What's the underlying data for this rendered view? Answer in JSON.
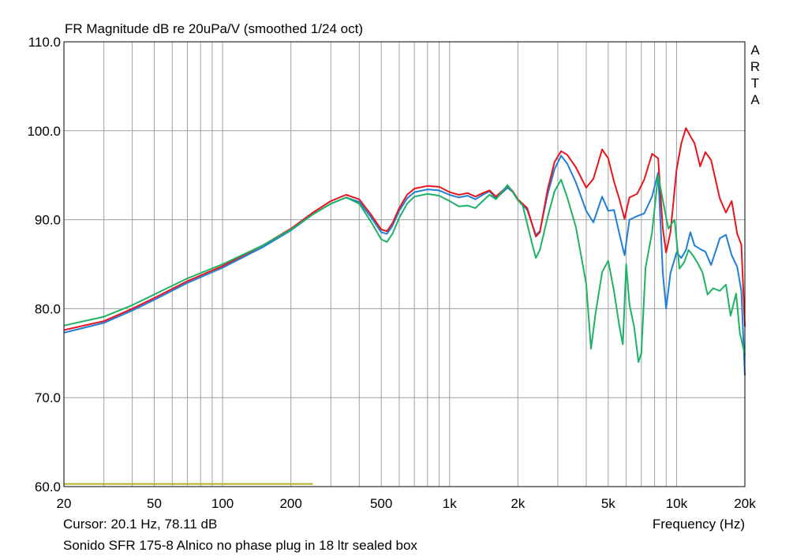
{
  "header": {
    "title": "FR Magnitude dB re 20uPa/V (smoothed 1/24 oct)",
    "brand_letters": [
      "A",
      "R",
      "T",
      "A"
    ]
  },
  "footer": {
    "cursor_readout": "Cursor: 20.1 Hz, 78.11 dB",
    "caption": "Sonido SFR 175-8 Alnico no phase plug in 18 ltr sealed box"
  },
  "chart_data": {
    "type": "line",
    "title": "FR Magnitude dB re 20uPa/V (smoothed 1/24 oct)",
    "xlabel": "Frequency (Hz)",
    "ylabel": "",
    "x_scale": "log",
    "xlim": [
      20,
      20000
    ],
    "ylim": [
      60,
      110
    ],
    "grid": true,
    "x_ticks": [
      {
        "value": 20,
        "label": "20"
      },
      {
        "value": 50,
        "label": "50"
      },
      {
        "value": 100,
        "label": "100"
      },
      {
        "value": 200,
        "label": "200"
      },
      {
        "value": 500,
        "label": "500"
      },
      {
        "value": 1000,
        "label": "1k"
      },
      {
        "value": 2000,
        "label": "2k"
      },
      {
        "value": 5000,
        "label": "5k"
      },
      {
        "value": 10000,
        "label": "10k"
      },
      {
        "value": 20000,
        "label": "20k"
      }
    ],
    "y_ticks": [
      {
        "value": 60,
        "label": "60.0"
      },
      {
        "value": 70,
        "label": "70.0"
      },
      {
        "value": 80,
        "label": "80.0"
      },
      {
        "value": 90,
        "label": "90.0"
      },
      {
        "value": 100,
        "label": "100.0"
      },
      {
        "value": 110,
        "label": "110.0"
      }
    ],
    "colors": {
      "grid": "#a0a0a0",
      "frame": "#000000"
    },
    "series": [
      {
        "color": "#1f7fd8",
        "points": [
          [
            20,
            77.3
          ],
          [
            30,
            78.4
          ],
          [
            40,
            79.8
          ],
          [
            50,
            81.0
          ],
          [
            70,
            82.9
          ],
          [
            100,
            84.6
          ],
          [
            150,
            86.9
          ],
          [
            200,
            88.8
          ],
          [
            250,
            90.6
          ],
          [
            300,
            91.8
          ],
          [
            350,
            92.5
          ],
          [
            400,
            92.0
          ],
          [
            450,
            90.3
          ],
          [
            500,
            88.6
          ],
          [
            530,
            88.4
          ],
          [
            560,
            89.3
          ],
          [
            600,
            91.0
          ],
          [
            650,
            92.4
          ],
          [
            700,
            93.1
          ],
          [
            800,
            93.4
          ],
          [
            900,
            93.3
          ],
          [
            1000,
            92.8
          ],
          [
            1100,
            92.5
          ],
          [
            1200,
            92.7
          ],
          [
            1300,
            92.3
          ],
          [
            1400,
            92.8
          ],
          [
            1500,
            93.2
          ],
          [
            1600,
            92.4
          ],
          [
            1700,
            93.0
          ],
          [
            1800,
            93.6
          ],
          [
            1900,
            93.1
          ],
          [
            2000,
            92.2
          ],
          [
            2200,
            91.1
          ],
          [
            2400,
            88.3
          ],
          [
            2500,
            88.7
          ],
          [
            2700,
            92.8
          ],
          [
            2900,
            95.7
          ],
          [
            3100,
            97.2
          ],
          [
            3300,
            96.3
          ],
          [
            3600,
            94.2
          ],
          [
            4000,
            91.0
          ],
          [
            4300,
            89.7
          ],
          [
            4700,
            92.6
          ],
          [
            5000,
            91.0
          ],
          [
            5300,
            91.1
          ],
          [
            5600,
            88.4
          ],
          [
            5900,
            86.0
          ],
          [
            6200,
            90.0
          ],
          [
            6700,
            90.4
          ],
          [
            7200,
            90.7
          ],
          [
            7800,
            92.6
          ],
          [
            8300,
            95.3
          ],
          [
            8700,
            84.0
          ],
          [
            9000,
            80.0
          ],
          [
            9400,
            84.0
          ],
          [
            10000,
            86.3
          ],
          [
            10500,
            85.7
          ],
          [
            11000,
            86.6
          ],
          [
            11500,
            88.6
          ],
          [
            12000,
            87.1
          ],
          [
            12700,
            86.7
          ],
          [
            13400,
            86.4
          ],
          [
            14200,
            84.9
          ],
          [
            15500,
            87.9
          ],
          [
            16500,
            88.3
          ],
          [
            17500,
            86.0
          ],
          [
            18500,
            84.7
          ],
          [
            19300,
            82.0
          ],
          [
            20000,
            72.5
          ]
        ]
      },
      {
        "color": "#e8141e",
        "points": [
          [
            20,
            77.6
          ],
          [
            30,
            78.6
          ],
          [
            40,
            80.0
          ],
          [
            50,
            81.2
          ],
          [
            70,
            83.1
          ],
          [
            100,
            84.8
          ],
          [
            150,
            87.1
          ],
          [
            200,
            89.0
          ],
          [
            250,
            90.8
          ],
          [
            300,
            92.1
          ],
          [
            350,
            92.8
          ],
          [
            400,
            92.3
          ],
          [
            450,
            90.6
          ],
          [
            500,
            88.9
          ],
          [
            530,
            88.7
          ],
          [
            560,
            89.6
          ],
          [
            600,
            91.3
          ],
          [
            650,
            92.8
          ],
          [
            700,
            93.5
          ],
          [
            800,
            93.8
          ],
          [
            900,
            93.7
          ],
          [
            1000,
            93.1
          ],
          [
            1100,
            92.8
          ],
          [
            1200,
            93.0
          ],
          [
            1300,
            92.6
          ],
          [
            1400,
            93.0
          ],
          [
            1500,
            93.3
          ],
          [
            1600,
            92.6
          ],
          [
            1700,
            93.2
          ],
          [
            1800,
            93.8
          ],
          [
            1900,
            93.2
          ],
          [
            2000,
            92.3
          ],
          [
            2200,
            91.3
          ],
          [
            2400,
            88.1
          ],
          [
            2500,
            88.6
          ],
          [
            2700,
            93.3
          ],
          [
            2900,
            96.5
          ],
          [
            3100,
            97.7
          ],
          [
            3300,
            97.3
          ],
          [
            3600,
            95.9
          ],
          [
            4000,
            93.6
          ],
          [
            4300,
            94.6
          ],
          [
            4700,
            97.9
          ],
          [
            5000,
            96.9
          ],
          [
            5300,
            94.3
          ],
          [
            5600,
            92.3
          ],
          [
            5900,
            90.1
          ],
          [
            6200,
            92.5
          ],
          [
            6700,
            92.9
          ],
          [
            7200,
            94.5
          ],
          [
            7800,
            97.4
          ],
          [
            8300,
            96.9
          ],
          [
            8700,
            89.0
          ],
          [
            9000,
            86.3
          ],
          [
            9400,
            88.6
          ],
          [
            10000,
            95.6
          ],
          [
            10500,
            98.6
          ],
          [
            11000,
            100.3
          ],
          [
            11500,
            99.4
          ],
          [
            12000,
            98.6
          ],
          [
            12700,
            96.0
          ],
          [
            13400,
            97.6
          ],
          [
            14200,
            96.7
          ],
          [
            15500,
            92.4
          ],
          [
            16500,
            90.8
          ],
          [
            17500,
            92.1
          ],
          [
            18500,
            88.4
          ],
          [
            19300,
            87.2
          ],
          [
            20000,
            78.0
          ]
        ]
      },
      {
        "color": "#1db264",
        "points": [
          [
            20,
            78.1
          ],
          [
            30,
            79.1
          ],
          [
            40,
            80.4
          ],
          [
            50,
            81.6
          ],
          [
            70,
            83.4
          ],
          [
            100,
            85.0
          ],
          [
            150,
            87.1
          ],
          [
            200,
            88.9
          ],
          [
            250,
            90.6
          ],
          [
            300,
            91.8
          ],
          [
            350,
            92.5
          ],
          [
            400,
            91.8
          ],
          [
            450,
            89.8
          ],
          [
            500,
            87.8
          ],
          [
            530,
            87.5
          ],
          [
            560,
            88.4
          ],
          [
            600,
            90.2
          ],
          [
            650,
            91.8
          ],
          [
            700,
            92.6
          ],
          [
            800,
            92.9
          ],
          [
            900,
            92.7
          ],
          [
            1000,
            92.1
          ],
          [
            1100,
            91.5
          ],
          [
            1200,
            91.6
          ],
          [
            1300,
            91.3
          ],
          [
            1400,
            92.1
          ],
          [
            1500,
            92.8
          ],
          [
            1600,
            92.3
          ],
          [
            1700,
            93.1
          ],
          [
            1800,
            93.9
          ],
          [
            1900,
            93.1
          ],
          [
            2000,
            92.2
          ],
          [
            2100,
            91.6
          ],
          [
            2300,
            87.5
          ],
          [
            2400,
            85.7
          ],
          [
            2500,
            86.6
          ],
          [
            2700,
            90.2
          ],
          [
            2900,
            93.2
          ],
          [
            3100,
            94.5
          ],
          [
            3300,
            92.5
          ],
          [
            3600,
            89.2
          ],
          [
            4000,
            82.8
          ],
          [
            4200,
            75.5
          ],
          [
            4400,
            79.5
          ],
          [
            4700,
            84.1
          ],
          [
            5000,
            85.4
          ],
          [
            5300,
            82.0
          ],
          [
            5600,
            78.0
          ],
          [
            5800,
            76.0
          ],
          [
            6000,
            85.0
          ],
          [
            6200,
            80.5
          ],
          [
            6500,
            78.0
          ],
          [
            6800,
            74.0
          ],
          [
            7000,
            75.0
          ],
          [
            7300,
            84.6
          ],
          [
            7800,
            88.6
          ],
          [
            8300,
            95.0
          ],
          [
            8700,
            92.2
          ],
          [
            9200,
            89.0
          ],
          [
            9800,
            90.0
          ],
          [
            10300,
            84.5
          ],
          [
            10800,
            85.2
          ],
          [
            11300,
            86.6
          ],
          [
            11800,
            86.0
          ],
          [
            12400,
            85.1
          ],
          [
            13000,
            84.1
          ],
          [
            13700,
            81.6
          ],
          [
            14500,
            82.3
          ],
          [
            15500,
            82.0
          ],
          [
            16500,
            82.7
          ],
          [
            17300,
            79.2
          ],
          [
            18300,
            81.7
          ],
          [
            19000,
            77.3
          ],
          [
            20000,
            74.8
          ]
        ]
      },
      {
        "color": "#b8b020",
        "points": [
          [
            20,
            60.3
          ],
          [
            250,
            60.3
          ]
        ]
      }
    ]
  }
}
